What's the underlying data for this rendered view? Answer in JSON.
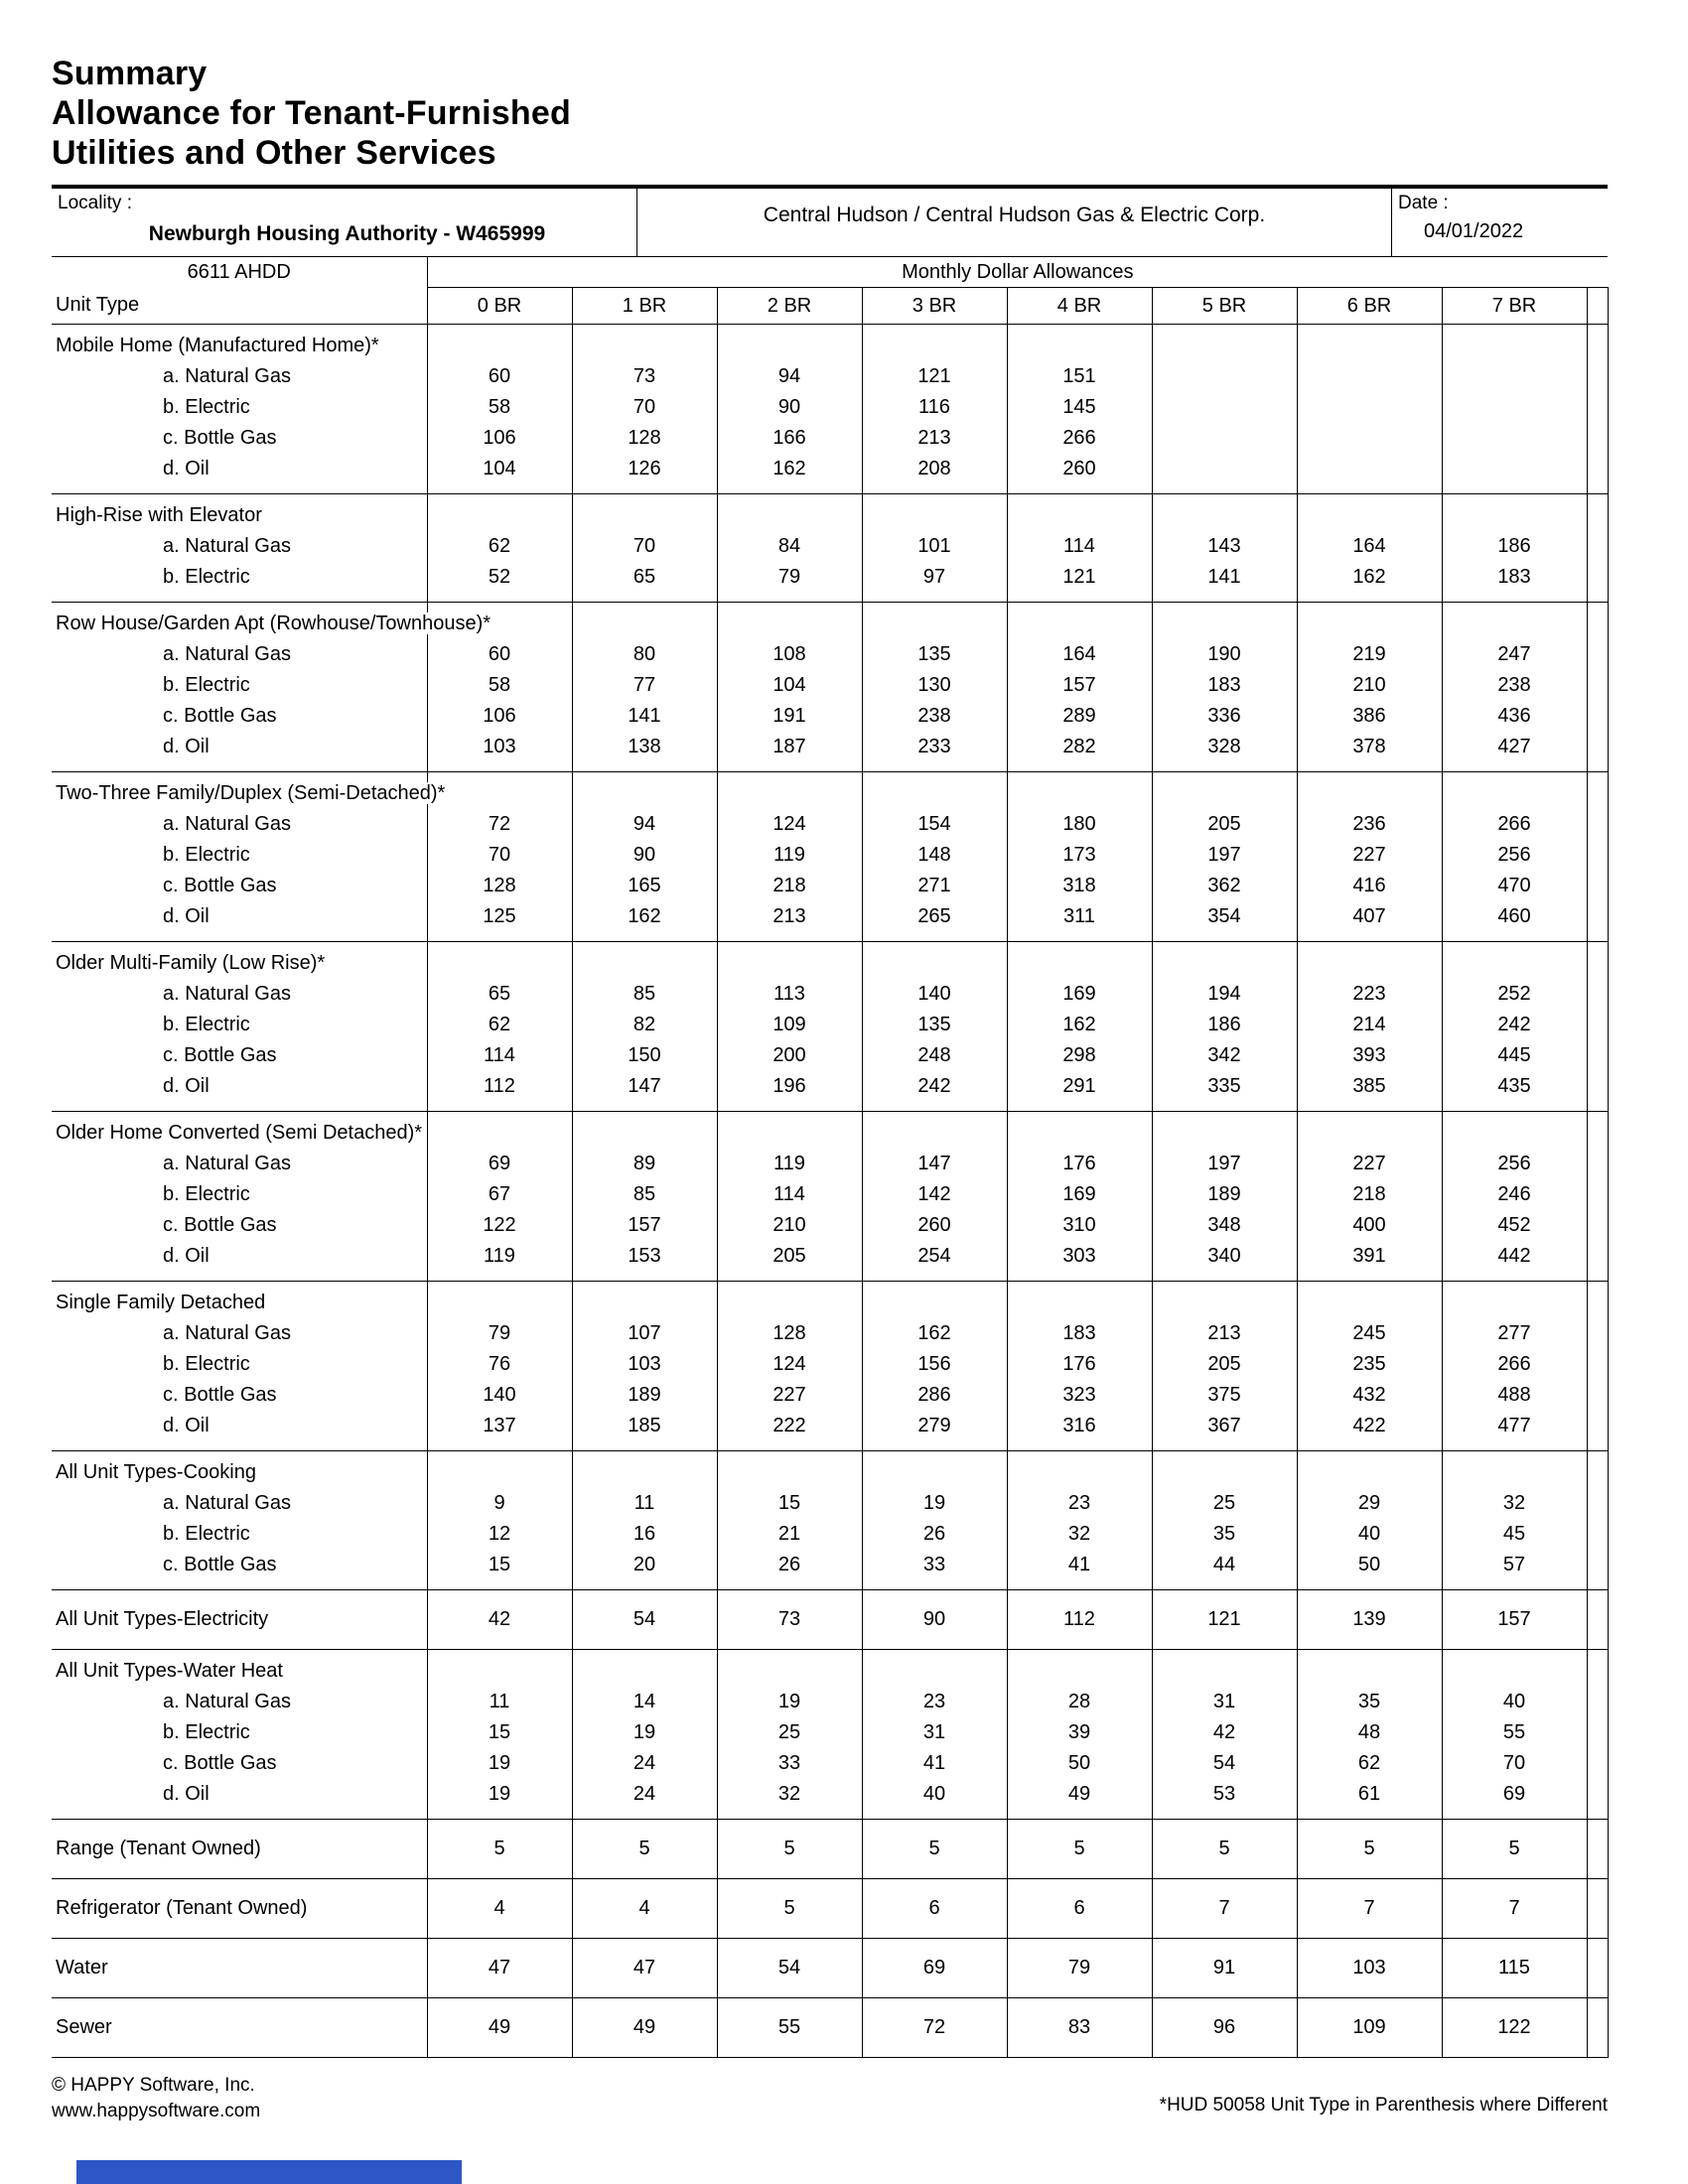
{
  "page": {
    "title_lines": [
      "Summary",
      "Allowance for Tenant-Furnished",
      "Utilities and Other Services"
    ]
  },
  "info_bar": {
    "locality_label": "Locality :",
    "locality_value": "Newburgh Housing Authority - W465999",
    "utility_company": "Central Hudson / Central Hudson Gas & Electric Corp.",
    "date_label": "Date :",
    "date_value": "04/01/2022"
  },
  "table": {
    "ahdd_label": "6611 AHDD",
    "band_title": "Monthly Dollar Allowances",
    "unit_type_label": "Unit Type",
    "columns": [
      "0 BR",
      "1 BR",
      "2 BR",
      "3 BR",
      "4 BR",
      "5 BR",
      "6 BR",
      "7 BR"
    ],
    "sections": [
      {
        "name": "Mobile Home (Manufactured Home)*",
        "rows": [
          {
            "label": "a. Natural Gas",
            "values": [
              60,
              73,
              94,
              121,
              151,
              "",
              "",
              ""
            ]
          },
          {
            "label": "b. Electric",
            "values": [
              58,
              70,
              90,
              116,
              145,
              "",
              "",
              ""
            ]
          },
          {
            "label": "c. Bottle Gas",
            "values": [
              106,
              128,
              166,
              213,
              266,
              "",
              "",
              ""
            ]
          },
          {
            "label": "d. Oil",
            "values": [
              104,
              126,
              162,
              208,
              260,
              "",
              "",
              ""
            ]
          }
        ]
      },
      {
        "name": "High-Rise with Elevator",
        "rows": [
          {
            "label": "a. Natural Gas",
            "values": [
              62,
              70,
              84,
              101,
              114,
              143,
              164,
              186
            ]
          },
          {
            "label": "b. Electric",
            "values": [
              52,
              65,
              79,
              97,
              121,
              141,
              162,
              183
            ]
          }
        ]
      },
      {
        "name": "Row House/Garden Apt (Rowhouse/Townhouse)*",
        "rows": [
          {
            "label": "a. Natural Gas",
            "values": [
              60,
              80,
              108,
              135,
              164,
              190,
              219,
              247
            ]
          },
          {
            "label": "b. Electric",
            "values": [
              58,
              77,
              104,
              130,
              157,
              183,
              210,
              238
            ]
          },
          {
            "label": "c. Bottle Gas",
            "values": [
              106,
              141,
              191,
              238,
              289,
              336,
              386,
              436
            ]
          },
          {
            "label": "d. Oil",
            "values": [
              103,
              138,
              187,
              233,
              282,
              328,
              378,
              427
            ]
          }
        ]
      },
      {
        "name": "Two-Three Family/Duplex (Semi-Detached)*",
        "rows": [
          {
            "label": "a. Natural Gas",
            "values": [
              72,
              94,
              124,
              154,
              180,
              205,
              236,
              266
            ]
          },
          {
            "label": "b. Electric",
            "values": [
              70,
              90,
              119,
              148,
              173,
              197,
              227,
              256
            ]
          },
          {
            "label": "c. Bottle Gas",
            "values": [
              128,
              165,
              218,
              271,
              318,
              362,
              416,
              470
            ]
          },
          {
            "label": "d. Oil",
            "values": [
              125,
              162,
              213,
              265,
              311,
              354,
              407,
              460
            ]
          }
        ]
      },
      {
        "name": "Older Multi-Family (Low Rise)*",
        "rows": [
          {
            "label": "a. Natural Gas",
            "values": [
              65,
              85,
              113,
              140,
              169,
              194,
              223,
              252
            ]
          },
          {
            "label": "b. Electric",
            "values": [
              62,
              82,
              109,
              135,
              162,
              186,
              214,
              242
            ]
          },
          {
            "label": "c. Bottle Gas",
            "values": [
              114,
              150,
              200,
              248,
              298,
              342,
              393,
              445
            ]
          },
          {
            "label": "d. Oil",
            "values": [
              112,
              147,
              196,
              242,
              291,
              335,
              385,
              435
            ]
          }
        ]
      },
      {
        "name": "Older Home Converted (Semi Detached)*",
        "rows": [
          {
            "label": "a. Natural Gas",
            "values": [
              69,
              89,
              119,
              147,
              176,
              197,
              227,
              256
            ]
          },
          {
            "label": "b. Electric",
            "values": [
              67,
              85,
              114,
              142,
              169,
              189,
              218,
              246
            ]
          },
          {
            "label": "c. Bottle Gas",
            "values": [
              122,
              157,
              210,
              260,
              310,
              348,
              400,
              452
            ]
          },
          {
            "label": "d. Oil",
            "values": [
              119,
              153,
              205,
              254,
              303,
              340,
              391,
              442
            ]
          }
        ]
      },
      {
        "name": "Single Family Detached",
        "rows": [
          {
            "label": "a. Natural Gas",
            "values": [
              79,
              107,
              128,
              162,
              183,
              213,
              245,
              277
            ]
          },
          {
            "label": "b. Electric",
            "values": [
              76,
              103,
              124,
              156,
              176,
              205,
              235,
              266
            ]
          },
          {
            "label": "c. Bottle Gas",
            "values": [
              140,
              189,
              227,
              286,
              323,
              375,
              432,
              488
            ]
          },
          {
            "label": "d. Oil",
            "values": [
              137,
              185,
              222,
              279,
              316,
              367,
              422,
              477
            ]
          }
        ]
      },
      {
        "name": "All Unit Types-Cooking",
        "rows": [
          {
            "label": "a. Natural Gas",
            "values": [
              9,
              11,
              15,
              19,
              23,
              25,
              29,
              32
            ]
          },
          {
            "label": "b. Electric",
            "values": [
              12,
              16,
              21,
              26,
              32,
              35,
              40,
              45
            ]
          },
          {
            "label": "c. Bottle Gas",
            "values": [
              15,
              20,
              26,
              33,
              41,
              44,
              50,
              57
            ]
          }
        ]
      },
      {
        "name": "All Unit Types-Electricity",
        "values": [
          42,
          54,
          73,
          90,
          112,
          121,
          139,
          157
        ]
      },
      {
        "name": "All Unit Types-Water Heat",
        "rows": [
          {
            "label": "a. Natural Gas",
            "values": [
              11,
              14,
              19,
              23,
              28,
              31,
              35,
              40
            ]
          },
          {
            "label": "b. Electric",
            "values": [
              15,
              19,
              25,
              31,
              39,
              42,
              48,
              55
            ]
          },
          {
            "label": "c. Bottle Gas",
            "values": [
              19,
              24,
              33,
              41,
              50,
              54,
              62,
              70
            ]
          },
          {
            "label": "d. Oil",
            "values": [
              19,
              24,
              32,
              40,
              49,
              53,
              61,
              69
            ]
          }
        ]
      },
      {
        "name": "Range (Tenant Owned)",
        "values": [
          5,
          5,
          5,
          5,
          5,
          5,
          5,
          5
        ]
      },
      {
        "name": "Refrigerator (Tenant Owned)",
        "values": [
          4,
          4,
          5,
          6,
          6,
          7,
          7,
          7
        ]
      },
      {
        "name": "Water",
        "values": [
          47,
          47,
          54,
          69,
          79,
          91,
          103,
          115
        ]
      },
      {
        "name": "Sewer",
        "values": [
          49,
          49,
          55,
          72,
          83,
          96,
          109,
          122
        ]
      }
    ]
  },
  "footer": {
    "copyright": "© HAPPY Software, Inc.",
    "website": "www.happysoftware.com",
    "note": "*HUD 50058 Unit Type in Parenthesis where Different"
  },
  "colors": {
    "table_border": "#000000",
    "bottom_bar": "#2e56c5"
  }
}
